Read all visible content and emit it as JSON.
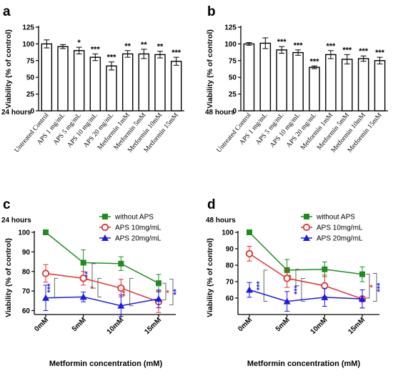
{
  "colors": {
    "without_aps": "#1e8c1e",
    "aps10": "#e03030",
    "aps20": "#1a1ae6",
    "bar_stroke": "#000000",
    "bracket": "#555555"
  },
  "chart_data": [
    {
      "panel": "a",
      "type": "bar",
      "time_label": "24 hours",
      "ylabel": "Viability (% of control)",
      "ylim": [
        0,
        125
      ],
      "yticks": [
        0,
        25,
        50,
        75,
        100,
        125
      ],
      "categories": [
        "Untreated Control",
        "APS 1 mg/mL",
        "APS 5 mg/mL",
        "APS 10 mg/mL",
        "APS 20 mg/mL",
        "Metformin 1mM",
        "Metformin 5mM",
        "Metformin 10mM",
        "Metformin 15mM"
      ],
      "values": [
        100,
        96,
        90,
        80,
        67,
        85,
        85,
        84,
        74
      ],
      "errors": [
        6,
        3,
        5,
        5,
        6,
        5,
        7,
        5,
        6
      ],
      "significance": [
        "",
        "",
        "*",
        "***",
        "***",
        "**",
        "**",
        "**",
        "***"
      ]
    },
    {
      "panel": "b",
      "type": "bar",
      "time_label": "48 hours",
      "ylabel": "Viability (% of control)",
      "ylim": [
        0,
        125
      ],
      "yticks": [
        0,
        25,
        50,
        75,
        100,
        125
      ],
      "categories": [
        "Untreated Control",
        "APS 1 mg/mL",
        "APS 5 mg/mL",
        "APS 10 mg/mL",
        "APS 20 mg/mL",
        "Metformin 1mM",
        "Metformin 5mM",
        "Metformin 10mM",
        "Metformin 15mM"
      ],
      "values": [
        100,
        101,
        91,
        87,
        65,
        84,
        77,
        78,
        75
      ],
      "errors": [
        2,
        8,
        5,
        4,
        2,
        6,
        7,
        4,
        5
      ],
      "significance": [
        "",
        "",
        "***",
        "***",
        "***",
        "***",
        "***",
        "***",
        "***"
      ]
    },
    {
      "panel": "c",
      "type": "line",
      "time_label": "24 hours",
      "ylabel": "Viability (% of control)",
      "xlabel": "Metformin concentration (mM)",
      "ylim": [
        58,
        100
      ],
      "yticks": [
        60,
        70,
        80,
        90,
        100
      ],
      "categories": [
        "0mM",
        "5mM",
        "10mM",
        "15mM"
      ],
      "legend_position": "top-right",
      "series": [
        {
          "name": "without APS",
          "color_key": "without_aps",
          "marker": "square",
          "values": [
            100,
            84.5,
            84,
            74
          ],
          "errors": [
            0,
            6.5,
            3.5,
            4.5
          ]
        },
        {
          "name": "APS 10mg/mL",
          "color_key": "aps10",
          "marker": "circle",
          "values": [
            79,
            76.5,
            71.5,
            64.5
          ],
          "errors": [
            4.5,
            3.5,
            4.5,
            5.5
          ]
        },
        {
          "name": "APS 20mg/mL",
          "color_key": "aps20",
          "marker": "triangle",
          "values": [
            66.5,
            67,
            62.5,
            66
          ],
          "errors": [
            6.5,
            2.5,
            5.5,
            4.5
          ]
        }
      ],
      "brackets": [
        {
          "x1": 0,
          "x2": 1,
          "y1": 66.5,
          "y2": 76.5,
          "label": "***",
          "color_key": "aps20",
          "side": "left",
          "level": 1
        },
        {
          "x1": 1,
          "x2": 2,
          "y1": 67,
          "y2": 76.5,
          "label": "*",
          "color_key": "aps10",
          "side": "left",
          "level": 0
        },
        {
          "x1": 1,
          "x2": 2,
          "y1": 71.5,
          "y2": 84,
          "label": "***",
          "color_key": "aps20",
          "side": "left",
          "level": 1
        },
        {
          "x1": 2,
          "x2": 3,
          "y1": 62.5,
          "y2": 76.5,
          "label": "***",
          "color_key": "aps10",
          "side": "left",
          "level": 1
        },
        {
          "x1": 3,
          "x2": 3,
          "y1": 65.5,
          "y2": 74,
          "label": "*",
          "color_key": "aps10",
          "side": "right",
          "level": 0
        },
        {
          "x1": 3,
          "x2": 3,
          "y1": 63,
          "y2": 76,
          "label": "**",
          "color_key": "aps20",
          "side": "right",
          "level": 1
        }
      ]
    },
    {
      "panel": "d",
      "type": "line",
      "time_label": "48 hours",
      "ylabel": "Viability (% of control)",
      "xlabel": "Metformin concentration (mM)",
      "ylim": [
        50,
        100
      ],
      "yticks": [
        60,
        70,
        80,
        90,
        100
      ],
      "categories": [
        "0mM",
        "5mM",
        "10mM",
        "15mM"
      ],
      "legend_position": "top-right",
      "series": [
        {
          "name": "without APS",
          "color_key": "without_aps",
          "marker": "square",
          "values": [
            100,
            77,
            77.5,
            74.5
          ],
          "errors": [
            0,
            6.5,
            4.5,
            4.5
          ]
        },
        {
          "name": "APS 10mg/mL",
          "color_key": "aps10",
          "marker": "circle",
          "values": [
            87,
            72,
            67.5,
            59.5
          ],
          "errors": [
            4.5,
            5.5,
            6.5,
            5.5
          ]
        },
        {
          "name": "APS 20mg/mL",
          "color_key": "aps20",
          "marker": "triangle",
          "values": [
            65,
            58,
            60.5,
            59.5
          ],
          "errors": [
            4.5,
            6,
            5.5,
            5.5
          ]
        }
      ],
      "brackets": [
        {
          "x1": 0,
          "x2": 1,
          "y1": 58,
          "y2": 77,
          "label": "***",
          "color_key": "aps20",
          "side": "left",
          "level": 0
        },
        {
          "x1": 1,
          "x2": 2,
          "y1": 58,
          "y2": 72,
          "label": "***",
          "color_key": "aps20",
          "side": "left",
          "level": 0
        },
        {
          "x1": 1,
          "x2": 2,
          "y1": 67.5,
          "y2": 77.5,
          "label": "**",
          "color_key": "aps10",
          "side": "left",
          "level": 1
        },
        {
          "x1": 3,
          "x2": 3,
          "y1": 60,
          "y2": 74.5,
          "label": "*",
          "color_key": "aps10",
          "side": "right",
          "level": 0
        },
        {
          "x1": 3,
          "x2": 3,
          "y1": 58,
          "y2": 75,
          "label": "***",
          "color_key": "aps20",
          "side": "right",
          "level": 1
        }
      ]
    }
  ]
}
